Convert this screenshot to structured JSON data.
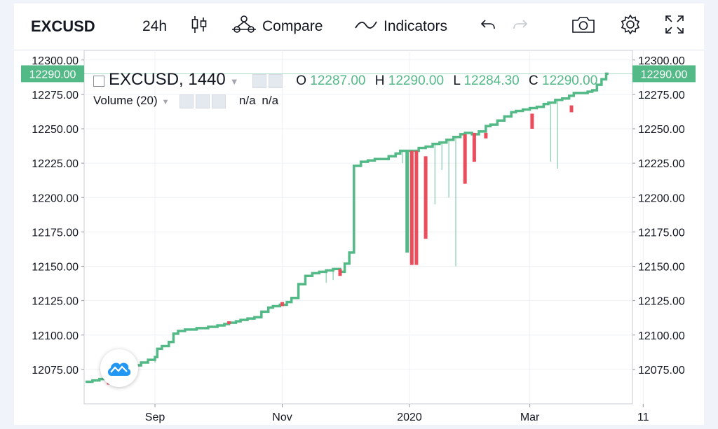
{
  "toolbar": {
    "symbol": "EXCUSD",
    "interval": "24h",
    "compare_label": "Compare",
    "indicators_label": "Indicators"
  },
  "legend": {
    "title": "EXCUSD, 1440",
    "o_label": "O",
    "o_value": "12287.00",
    "h_label": "H",
    "h_value": "12290.00",
    "l_label": "L",
    "l_value": "12284.30",
    "c_label": "C",
    "c_value": "12290.00",
    "volume_label": "Volume (20)",
    "volume_value_1": "n/a",
    "volume_value_2": "n/a"
  },
  "price_badge": "12290.00",
  "colors": {
    "up": "#53b987",
    "down": "#eb4d5c",
    "grid": "#eef0f4",
    "axis_text": "#131722"
  },
  "chart_data": {
    "type": "line",
    "title": "EXCUSD, 1440",
    "y_ticks": [
      12300,
      12275,
      12250,
      12225,
      12200,
      12175,
      12150,
      12125,
      12100,
      12075
    ],
    "ylim": [
      12050,
      12307
    ],
    "x_labels": [
      "Sep",
      "Nov",
      "2020",
      "Mar",
      "11"
    ],
    "last_price": 12290,
    "series": [
      {
        "points": [
          [
            0,
            12066
          ],
          [
            2,
            12066
          ],
          [
            3,
            12067
          ],
          [
            5,
            12067
          ],
          [
            6,
            12068
          ],
          [
            9,
            12069
          ],
          [
            10,
            12065
          ],
          [
            11,
            12069
          ],
          [
            14,
            12071
          ],
          [
            17,
            12074
          ],
          [
            20,
            12076
          ],
          [
            22,
            12078
          ],
          [
            24,
            12080
          ],
          [
            27,
            12082
          ],
          [
            30,
            12084
          ],
          [
            31,
            12090
          ],
          [
            33,
            12092
          ],
          [
            36,
            12095
          ],
          [
            38,
            12101
          ],
          [
            40,
            12103
          ],
          [
            43,
            12104
          ],
          [
            46,
            12104
          ],
          [
            48,
            12105
          ],
          [
            51,
            12105
          ],
          [
            53,
            12106
          ],
          [
            57,
            12107
          ],
          [
            60,
            12108
          ],
          [
            62,
            12109
          ],
          [
            65,
            12110
          ],
          [
            67,
            12111
          ],
          [
            70,
            12112
          ],
          [
            73,
            12113
          ],
          [
            76,
            12117
          ],
          [
            79,
            12120
          ],
          [
            81,
            12121
          ],
          [
            84,
            12122
          ],
          [
            87,
            12124
          ],
          [
            89,
            12127
          ],
          [
            92,
            12137
          ],
          [
            95,
            12143
          ],
          [
            98,
            12145
          ],
          [
            101,
            12146
          ],
          [
            104,
            12147
          ],
          [
            107,
            12148
          ],
          [
            110,
            12146
          ],
          [
            112,
            12152
          ],
          [
            114,
            12160
          ],
          [
            116,
            12223
          ],
          [
            119,
            12226
          ],
          [
            122,
            12227
          ],
          [
            125,
            12228
          ],
          [
            128,
            12228
          ],
          [
            131,
            12230
          ],
          [
            134,
            12232
          ],
          [
            136,
            12234
          ],
          [
            138,
            12234
          ],
          [
            141,
            12234
          ],
          [
            144,
            12236
          ],
          [
            147,
            12237
          ],
          [
            150,
            12239
          ],
          [
            153,
            12240
          ],
          [
            156,
            12242
          ],
          [
            159,
            12244
          ],
          [
            162,
            12246
          ],
          [
            164,
            12247
          ],
          [
            167,
            12246
          ],
          [
            170,
            12248
          ],
          [
            173,
            12252
          ],
          [
            175,
            12253
          ],
          [
            178,
            12256
          ],
          [
            181,
            12259
          ],
          [
            184,
            12262
          ],
          [
            186,
            12263
          ],
          [
            189,
            12264
          ],
          [
            192,
            12265
          ],
          [
            195,
            12266
          ],
          [
            198,
            12268
          ],
          [
            200,
            12269
          ],
          [
            203,
            12271
          ],
          [
            206,
            12272
          ],
          [
            209,
            12274
          ],
          [
            211,
            12276
          ],
          [
            214,
            12276
          ],
          [
            217,
            12277
          ],
          [
            219,
            12278
          ],
          [
            221,
            12282
          ],
          [
            223,
            12286
          ],
          [
            225,
            12290
          ]
        ]
      }
    ],
    "candles_down": [
      {
        "i": 10,
        "open": 12068,
        "close": 12064
      },
      {
        "i": 62,
        "open": 12110,
        "close": 12108
      },
      {
        "i": 85,
        "open": 12124,
        "close": 12121
      },
      {
        "i": 110,
        "open": 12148,
        "close": 12143
      },
      {
        "i": 141,
        "open": 12234,
        "close": 12151
      },
      {
        "i": 143,
        "open": 12234,
        "close": 12151
      },
      {
        "i": 147,
        "open": 12230,
        "close": 12170
      },
      {
        "i": 164,
        "open": 12246,
        "close": 12210
      },
      {
        "i": 168,
        "open": 12247,
        "close": 12226
      },
      {
        "i": 173,
        "open": 12247,
        "close": 12243
      },
      {
        "i": 193,
        "open": 12261,
        "close": 12250
      },
      {
        "i": 210,
        "open": 12267,
        "close": 12262
      }
    ],
    "candles_up": [
      {
        "i": 139,
        "open": 12160,
        "close": 12234
      }
    ],
    "wicks": [
      {
        "i": 30,
        "low": 12080
      },
      {
        "i": 104,
        "low": 12138
      },
      {
        "i": 107,
        "low": 12140
      },
      {
        "i": 137,
        "low": 12225
      },
      {
        "i": 151,
        "low": 12195
      },
      {
        "i": 154,
        "low": 12220
      },
      {
        "i": 157,
        "low": 12200
      },
      {
        "i": 160,
        "low": 12150
      },
      {
        "i": 201,
        "low": 12226
      },
      {
        "i": 204,
        "low": 12221
      }
    ]
  }
}
